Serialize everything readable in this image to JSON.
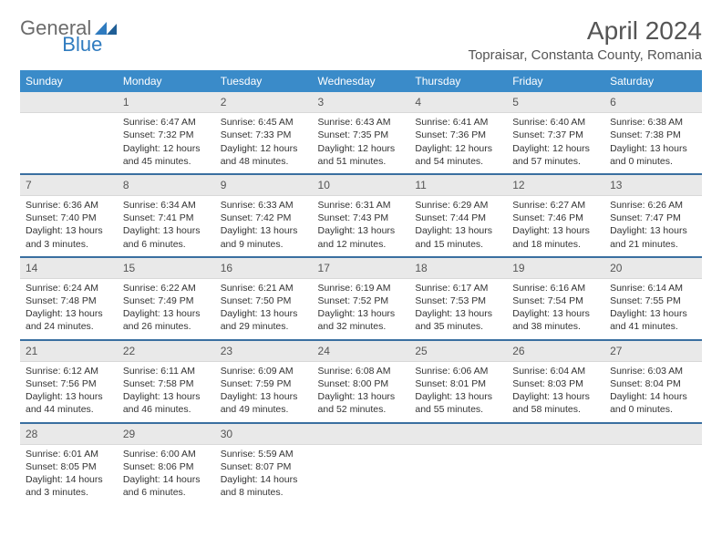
{
  "logo": {
    "general": "General",
    "blue": "Blue"
  },
  "title": "April 2024",
  "location": "Topraisar, Constanta County, Romania",
  "headers": [
    "Sunday",
    "Monday",
    "Tuesday",
    "Wednesday",
    "Thursday",
    "Friday",
    "Saturday"
  ],
  "colors": {
    "header_bg": "#3a8bc9",
    "header_fg": "#ffffff",
    "daynum_bg": "#e9e9e9",
    "border": "#3a6fa0",
    "logo_gray": "#6b6b6b",
    "logo_blue": "#2f7bbf"
  },
  "weeks": [
    [
      {
        "n": "",
        "lines": []
      },
      {
        "n": "1",
        "lines": [
          "Sunrise: 6:47 AM",
          "Sunset: 7:32 PM",
          "Daylight: 12 hours",
          "and 45 minutes."
        ]
      },
      {
        "n": "2",
        "lines": [
          "Sunrise: 6:45 AM",
          "Sunset: 7:33 PM",
          "Daylight: 12 hours",
          "and 48 minutes."
        ]
      },
      {
        "n": "3",
        "lines": [
          "Sunrise: 6:43 AM",
          "Sunset: 7:35 PM",
          "Daylight: 12 hours",
          "and 51 minutes."
        ]
      },
      {
        "n": "4",
        "lines": [
          "Sunrise: 6:41 AM",
          "Sunset: 7:36 PM",
          "Daylight: 12 hours",
          "and 54 minutes."
        ]
      },
      {
        "n": "5",
        "lines": [
          "Sunrise: 6:40 AM",
          "Sunset: 7:37 PM",
          "Daylight: 12 hours",
          "and 57 minutes."
        ]
      },
      {
        "n": "6",
        "lines": [
          "Sunrise: 6:38 AM",
          "Sunset: 7:38 PM",
          "Daylight: 13 hours",
          "and 0 minutes."
        ]
      }
    ],
    [
      {
        "n": "7",
        "lines": [
          "Sunrise: 6:36 AM",
          "Sunset: 7:40 PM",
          "Daylight: 13 hours",
          "and 3 minutes."
        ]
      },
      {
        "n": "8",
        "lines": [
          "Sunrise: 6:34 AM",
          "Sunset: 7:41 PM",
          "Daylight: 13 hours",
          "and 6 minutes."
        ]
      },
      {
        "n": "9",
        "lines": [
          "Sunrise: 6:33 AM",
          "Sunset: 7:42 PM",
          "Daylight: 13 hours",
          "and 9 minutes."
        ]
      },
      {
        "n": "10",
        "lines": [
          "Sunrise: 6:31 AM",
          "Sunset: 7:43 PM",
          "Daylight: 13 hours",
          "and 12 minutes."
        ]
      },
      {
        "n": "11",
        "lines": [
          "Sunrise: 6:29 AM",
          "Sunset: 7:44 PM",
          "Daylight: 13 hours",
          "and 15 minutes."
        ]
      },
      {
        "n": "12",
        "lines": [
          "Sunrise: 6:27 AM",
          "Sunset: 7:46 PM",
          "Daylight: 13 hours",
          "and 18 minutes."
        ]
      },
      {
        "n": "13",
        "lines": [
          "Sunrise: 6:26 AM",
          "Sunset: 7:47 PM",
          "Daylight: 13 hours",
          "and 21 minutes."
        ]
      }
    ],
    [
      {
        "n": "14",
        "lines": [
          "Sunrise: 6:24 AM",
          "Sunset: 7:48 PM",
          "Daylight: 13 hours",
          "and 24 minutes."
        ]
      },
      {
        "n": "15",
        "lines": [
          "Sunrise: 6:22 AM",
          "Sunset: 7:49 PM",
          "Daylight: 13 hours",
          "and 26 minutes."
        ]
      },
      {
        "n": "16",
        "lines": [
          "Sunrise: 6:21 AM",
          "Sunset: 7:50 PM",
          "Daylight: 13 hours",
          "and 29 minutes."
        ]
      },
      {
        "n": "17",
        "lines": [
          "Sunrise: 6:19 AM",
          "Sunset: 7:52 PM",
          "Daylight: 13 hours",
          "and 32 minutes."
        ]
      },
      {
        "n": "18",
        "lines": [
          "Sunrise: 6:17 AM",
          "Sunset: 7:53 PM",
          "Daylight: 13 hours",
          "and 35 minutes."
        ]
      },
      {
        "n": "19",
        "lines": [
          "Sunrise: 6:16 AM",
          "Sunset: 7:54 PM",
          "Daylight: 13 hours",
          "and 38 minutes."
        ]
      },
      {
        "n": "20",
        "lines": [
          "Sunrise: 6:14 AM",
          "Sunset: 7:55 PM",
          "Daylight: 13 hours",
          "and 41 minutes."
        ]
      }
    ],
    [
      {
        "n": "21",
        "lines": [
          "Sunrise: 6:12 AM",
          "Sunset: 7:56 PM",
          "Daylight: 13 hours",
          "and 44 minutes."
        ]
      },
      {
        "n": "22",
        "lines": [
          "Sunrise: 6:11 AM",
          "Sunset: 7:58 PM",
          "Daylight: 13 hours",
          "and 46 minutes."
        ]
      },
      {
        "n": "23",
        "lines": [
          "Sunrise: 6:09 AM",
          "Sunset: 7:59 PM",
          "Daylight: 13 hours",
          "and 49 minutes."
        ]
      },
      {
        "n": "24",
        "lines": [
          "Sunrise: 6:08 AM",
          "Sunset: 8:00 PM",
          "Daylight: 13 hours",
          "and 52 minutes."
        ]
      },
      {
        "n": "25",
        "lines": [
          "Sunrise: 6:06 AM",
          "Sunset: 8:01 PM",
          "Daylight: 13 hours",
          "and 55 minutes."
        ]
      },
      {
        "n": "26",
        "lines": [
          "Sunrise: 6:04 AM",
          "Sunset: 8:03 PM",
          "Daylight: 13 hours",
          "and 58 minutes."
        ]
      },
      {
        "n": "27",
        "lines": [
          "Sunrise: 6:03 AM",
          "Sunset: 8:04 PM",
          "Daylight: 14 hours",
          "and 0 minutes."
        ]
      }
    ],
    [
      {
        "n": "28",
        "lines": [
          "Sunrise: 6:01 AM",
          "Sunset: 8:05 PM",
          "Daylight: 14 hours",
          "and 3 minutes."
        ]
      },
      {
        "n": "29",
        "lines": [
          "Sunrise: 6:00 AM",
          "Sunset: 8:06 PM",
          "Daylight: 14 hours",
          "and 6 minutes."
        ]
      },
      {
        "n": "30",
        "lines": [
          "Sunrise: 5:59 AM",
          "Sunset: 8:07 PM",
          "Daylight: 14 hours",
          "and 8 minutes."
        ]
      },
      {
        "n": "",
        "lines": []
      },
      {
        "n": "",
        "lines": []
      },
      {
        "n": "",
        "lines": []
      },
      {
        "n": "",
        "lines": []
      }
    ]
  ]
}
